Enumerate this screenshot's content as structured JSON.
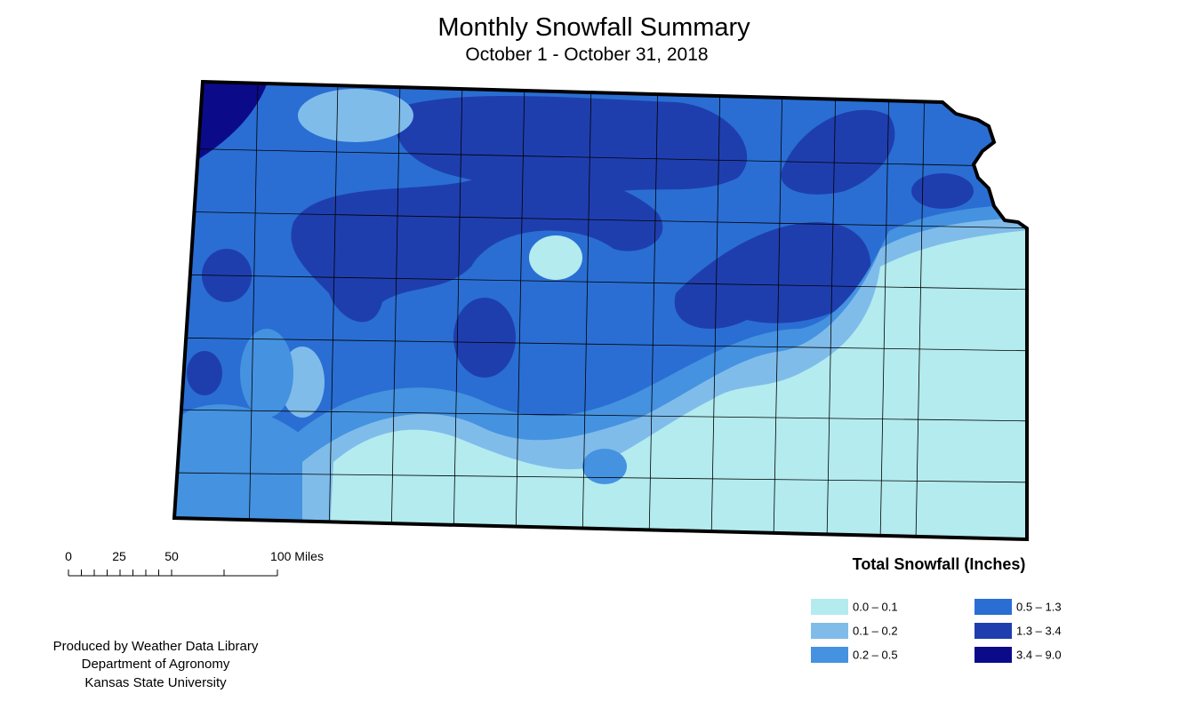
{
  "header": {
    "title": "Monthly Snowfall Summary",
    "subtitle": "October 1 - October 31, 2018"
  },
  "scale_bar": {
    "labels": [
      "0",
      "25",
      "50",
      "100 Miles"
    ]
  },
  "legend": {
    "title": "Total Snowfall (Inches)",
    "items": [
      {
        "label": "0.0 – 0.1",
        "color": "#b3ebef"
      },
      {
        "label": "0.1 – 0.2",
        "color": "#80bcea"
      },
      {
        "label": "0.2 – 0.5",
        "color": "#4592e0"
      },
      {
        "label": "0.5 – 1.3",
        "color": "#2a6ed3"
      },
      {
        "label": "1.3 – 3.4",
        "color": "#1f3eae"
      },
      {
        "label": "3.4 – 9.0",
        "color": "#0b0b8a"
      }
    ]
  },
  "credits": [
    "Produced by Weather Data Library",
    "Department of Agronomy",
    "Kansas State University"
  ]
}
